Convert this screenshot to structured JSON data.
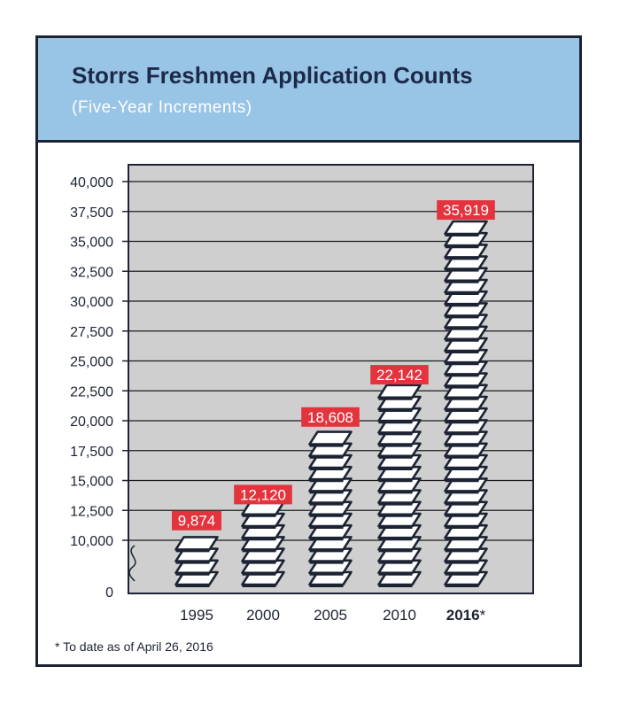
{
  "title": "Storrs Freshmen Application Counts",
  "subtitle": "(Five-Year Increments)",
  "footnote": "* To date as of April 26, 2016",
  "colors": {
    "header_bg": "#98c4e6",
    "title": "#1c2a4a",
    "plot_bg": "#cfcfcf",
    "label_bg": "#e3343e",
    "ink": "#1c2333"
  },
  "chart_data": {
    "type": "bar",
    "title": "Storrs Freshmen Application Counts",
    "subtitle": "(Five-Year Increments)",
    "categories": [
      "1995",
      "2000",
      "2005",
      "2010",
      "2016"
    ],
    "category_suffix": [
      "",
      "",
      "",
      "",
      "*"
    ],
    "bold_category": "2016",
    "values": [
      9874,
      12120,
      18608,
      22142,
      35919
    ],
    "value_labels": [
      "9,874",
      "12,120",
      "18,608",
      "22,142",
      "35,919"
    ],
    "yticks": [
      0,
      10000,
      12500,
      15000,
      17500,
      20000,
      22500,
      25000,
      27500,
      30000,
      32500,
      35000,
      37500,
      40000
    ],
    "ytick_labels": [
      "0",
      "10,000",
      "12,500",
      "15,000",
      "17,500",
      "20,000",
      "22,500",
      "25,000",
      "27,500",
      "30,000",
      "32,500",
      "35,000",
      "37,500",
      "40,000"
    ],
    "ylim": [
      0,
      40000
    ],
    "axis_break": true,
    "grid": true,
    "xlabel": "",
    "ylabel": ""
  }
}
